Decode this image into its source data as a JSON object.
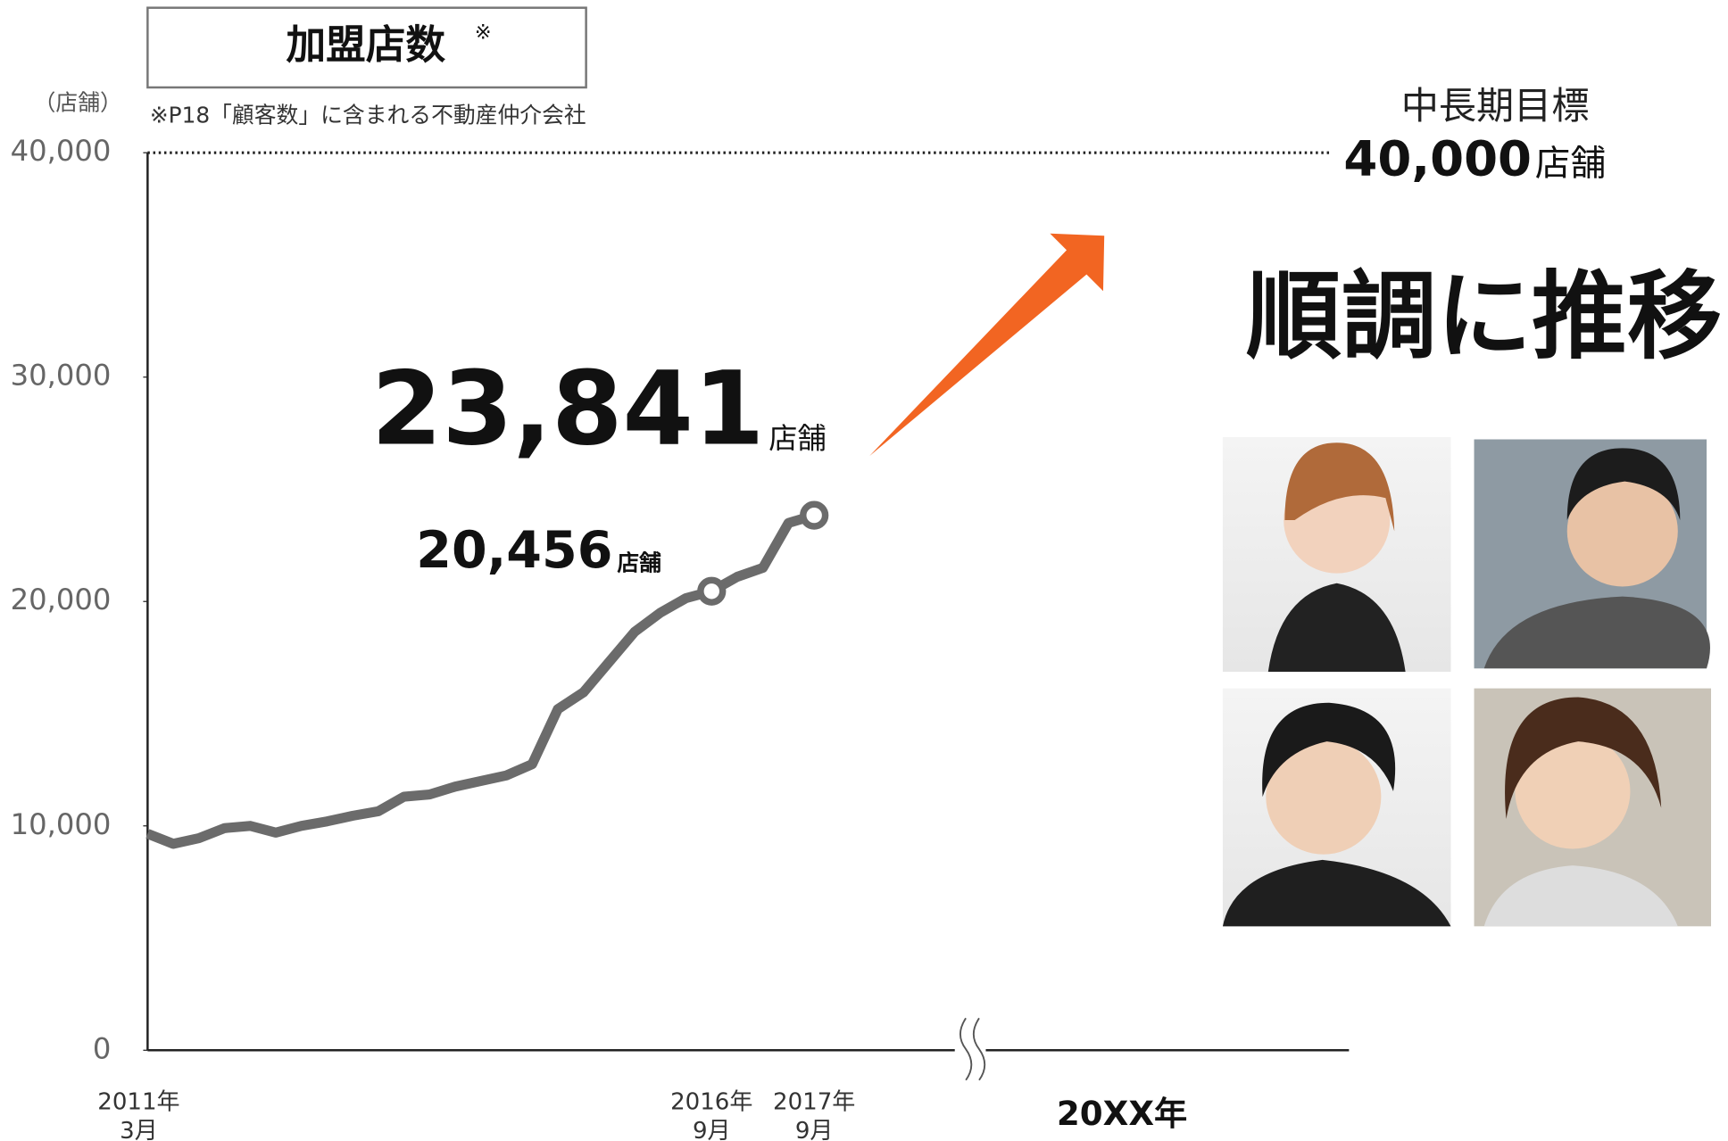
{
  "chart_data": {
    "type": "line",
    "title": "加盟店数",
    "title_mark": "※",
    "note": "※P18「顧客数」に含まれる不動産仲介会社",
    "y_unit": "（店舗）",
    "headline": "順調に推移",
    "future_label": "20XX年",
    "target": {
      "label": "中長期目標",
      "value": 40000,
      "value_label": "40,000",
      "unit": "店舗"
    },
    "unit_label": "店舗",
    "categories": [
      "2011年\n3月",
      null,
      null,
      null,
      null,
      null,
      null,
      null,
      null,
      null,
      null,
      null,
      null,
      null,
      null,
      null,
      null,
      null,
      null,
      null,
      null,
      null,
      "2016年\n9月",
      null,
      null,
      null,
      "2017年\n9月"
    ],
    "series": [
      {
        "color": "#6b6b6b",
        "values": [
          9650,
          9200,
          9450,
          9900,
          10000,
          9700,
          10000,
          10200,
          10450,
          10650,
          11300,
          11400,
          11750,
          12000,
          12250,
          12750,
          15200,
          15950,
          17300,
          18650,
          19500,
          20150,
          20456,
          21100,
          21500,
          23500,
          23841
        ],
        "value_labels": [
          null,
          null,
          null,
          null,
          null,
          null,
          null,
          null,
          null,
          null,
          null,
          null,
          null,
          null,
          null,
          null,
          null,
          null,
          null,
          null,
          null,
          null,
          "20,456",
          null,
          null,
          null,
          "23,841"
        ],
        "markers": [
          22,
          26
        ]
      }
    ],
    "ylim": [
      0,
      40000
    ],
    "yticks": [
      0,
      {
        "value": 10000,
        "label": "10,000"
      },
      {
        "value": 20000,
        "label": "20,000"
      },
      {
        "value": 30000,
        "label": "30,000"
      },
      {
        "value": 40000,
        "label": "40,000"
      }
    ],
    "arrow_color": "#f26522"
  }
}
